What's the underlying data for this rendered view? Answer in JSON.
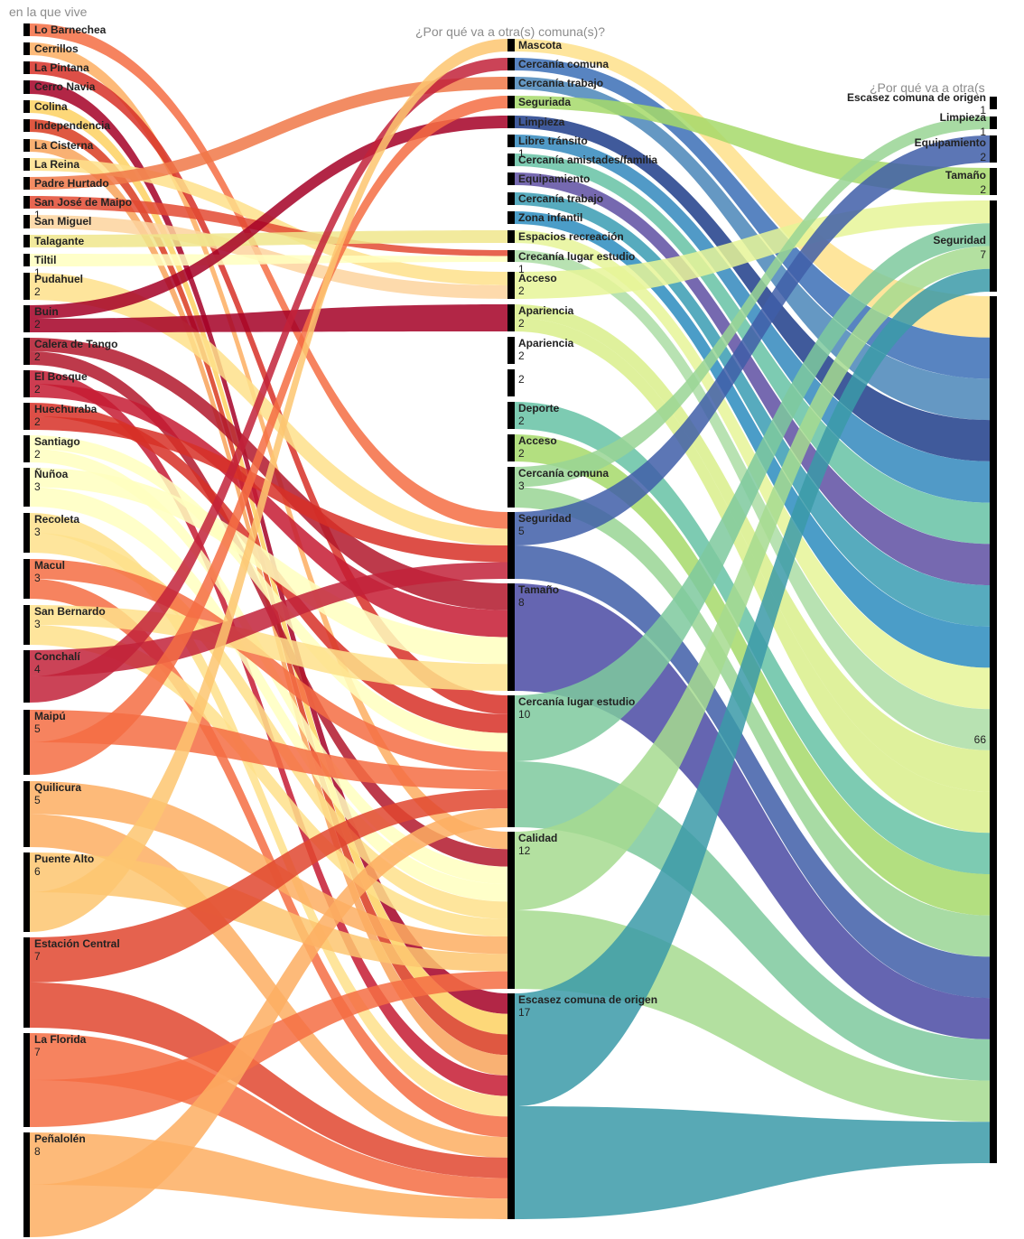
{
  "columns": {
    "left_title": "en la que vive",
    "middle_title": "¿Por qué va a otra(s) comuna(s)?",
    "right_title": "¿Por qué va a otra(s"
  },
  "left_nodes": [
    {
      "name": "Lo Barnechea",
      "count": "",
      "color": "#f46d43"
    },
    {
      "name": "Cerrillos",
      "count": "",
      "color": "#fdae61"
    },
    {
      "name": "La Pintana",
      "count": "",
      "color": "#d73027"
    },
    {
      "name": "Cerro Navia",
      "count": "",
      "color": "#a50026"
    },
    {
      "name": "Colina",
      "count": "",
      "color": "#fdd162"
    },
    {
      "name": "Independencia",
      "count": "",
      "color": "#d93b20"
    },
    {
      "name": "La Cisterna",
      "count": "",
      "color": "#f8a35a"
    },
    {
      "name": "La Reina",
      "count": "",
      "color": "#fee08b"
    },
    {
      "name": "Padre Hurtado",
      "count": "",
      "color": "#f07848"
    },
    {
      "name": "San José de Maipo",
      "count": "1",
      "color": "#e34a33"
    },
    {
      "name": "San Miguel",
      "count": "",
      "color": "#fdd49e"
    },
    {
      "name": "Talagante",
      "count": "",
      "color": "#f0e68c"
    },
    {
      "name": "Tiltil",
      "count": "1",
      "color": "#ffffbf"
    },
    {
      "name": "Pudahuel",
      "count": "2",
      "color": "#fee08b"
    },
    {
      "name": "Buin",
      "count": "2",
      "color": "#a50026"
    },
    {
      "name": "Calera de Tango",
      "count": "2",
      "color": "#b2182b"
    },
    {
      "name": "El Bosque",
      "count": "2",
      "color": "#c51b33"
    },
    {
      "name": "Huechuraba",
      "count": "2",
      "color": "#d73027"
    },
    {
      "name": "Santiago",
      "count": "2",
      "color": "#ffffbf"
    },
    {
      "name": "Ñuñoa",
      "count": "3",
      "color": "#ffffbf"
    },
    {
      "name": "Recoleta",
      "count": "3",
      "color": "#fee08b"
    },
    {
      "name": "Macul",
      "count": "3",
      "color": "#f46d43"
    },
    {
      "name": "San Bernardo",
      "count": "3",
      "color": "#fee08b"
    },
    {
      "name": "Conchalí",
      "count": "4",
      "color": "#c2223a"
    },
    {
      "name": "Maipú",
      "count": "5",
      "color": "#f46d43"
    },
    {
      "name": "Quilicura",
      "count": "5",
      "color": "#fdae61"
    },
    {
      "name": "Puente Alto",
      "count": "6",
      "color": "#fdc670"
    },
    {
      "name": "Estación Central",
      "count": "7",
      "color": "#e0462f"
    },
    {
      "name": "La Florida",
      "count": "7",
      "color": "#f46d43"
    },
    {
      "name": "Peñalolén",
      "count": "8",
      "color": "#fdae61"
    }
  ],
  "middle_nodes": [
    {
      "name": "Mascota",
      "count": "",
      "color": "#fee08b"
    },
    {
      "name": "Cercanía comuna",
      "count": "",
      "color": "#3b6fb6"
    },
    {
      "name": "Cercanía trabajo",
      "count": "",
      "color": "#4a86b8"
    },
    {
      "name": "Seguriada",
      "count": "",
      "color": "#a6d96a"
    },
    {
      "name": "Limpieza",
      "count": "",
      "color": "#1f3d8a"
    },
    {
      "name": "Libre tránsito",
      "count": "1",
      "color": "#3288bd"
    },
    {
      "name": "Cercanía amistades/familia",
      "count": "",
      "color": "#66c2a5"
    },
    {
      "name": "Equipamiento",
      "count": "",
      "color": "#5e4fa2"
    },
    {
      "name": "Cercanía trabajo",
      "count": "",
      "color": "#3a9cb3"
    },
    {
      "name": "Zona infantil",
      "count": "",
      "color": "#2b8cbe"
    },
    {
      "name": "Espacios recreación",
      "count": "",
      "color": "#e6f598"
    },
    {
      "name": "Crecanía lugar estudio",
      "count": "1",
      "color": "#abdda4"
    },
    {
      "name": "Acceso",
      "count": "2",
      "color": "#e6f598"
    },
    {
      "name": "Apariencia",
      "count": "2",
      "color": "#d9ef8b"
    },
    {
      "name": "Apariencia",
      "count": "2",
      "color": "#e6f598"
    },
    {
      "name": "",
      "count": "2",
      "color": "#ffffbf"
    },
    {
      "name": "Deporte",
      "count": "2",
      "color": "#66c2a5"
    },
    {
      "name": "Acceso",
      "count": "2",
      "color": "#a6d96a"
    },
    {
      "name": "Cercanía comuna",
      "count": "3",
      "color": "#99d594"
    },
    {
      "name": "Seguridad",
      "count": "5",
      "color": "#3f5ea8"
    },
    {
      "name": "Tamaño",
      "count": "8",
      "color": "#4a4aa3"
    },
    {
      "name": "Cercanía lugar estudio",
      "count": "10",
      "color": "#7ec99e"
    },
    {
      "name": "Calidad",
      "count": "12",
      "color": "#a6db8f"
    },
    {
      "name": "Escasez comuna de origen",
      "count": "17",
      "color": "#3b9aa8"
    }
  ],
  "right_nodes": [
    {
      "name": "Escasez comuna de origen",
      "count": "1",
      "color": "#3b9aa8"
    },
    {
      "name": "Limpieza",
      "count": "1",
      "color": "#4a4aa3"
    },
    {
      "name": "Equipamiento",
      "count": "2",
      "color": "#6b55a8"
    },
    {
      "name": "Tamaño",
      "count": "2",
      "color": "#3f5ea8"
    },
    {
      "name": "Seguridad",
      "count": "7",
      "color": "#3b9aa8"
    },
    {
      "name": "",
      "count": "66",
      "color": "#3b9aa8"
    }
  ],
  "left_links": [
    {
      "from": "Lo Barnechea",
      "to": "Seguridad"
    },
    {
      "from": "Cerrillos",
      "to": "Calidad"
    },
    {
      "from": "La Pintana",
      "to": "Cercanía lugar estudio"
    },
    {
      "from": "Cerro Navia",
      "to": "Escasez comuna de origen"
    },
    {
      "from": "Colina",
      "to": "Escasez comuna de origen"
    },
    {
      "from": "Independencia",
      "to": "Escasez comuna de origen"
    },
    {
      "from": "La Cisterna",
      "to": "Escasez comuna de origen"
    },
    {
      "from": "La Reina",
      "to": "Acceso"
    },
    {
      "from": "Padre Hurtado",
      "to": "Cercanía trabajo"
    },
    {
      "from": "San José de Maipo",
      "to": "Crecanía lugar estudio"
    },
    {
      "from": "San Miguel",
      "to": "Acceso"
    },
    {
      "from": "Talagante",
      "to": "Espacios recreación"
    },
    {
      "from": "Tiltil",
      "to": "Crecanía lugar estudio"
    },
    {
      "from": "Pudahuel",
      "to": "Seguridad"
    },
    {
      "from": "Buin",
      "to": "Limpieza"
    },
    {
      "from": "Buin",
      "to": "Apariencia"
    },
    {
      "from": "Calera de Tango",
      "to": "Tamaño"
    },
    {
      "from": "Calera de Tango",
      "to": "Calidad"
    },
    {
      "from": "El Bosque",
      "to": "Escasez comuna de origen"
    },
    {
      "from": "El Bosque",
      "to": "Tamaño"
    },
    {
      "from": "Huechuraba",
      "to": "Cercanía lugar estudio"
    },
    {
      "from": "Huechuraba",
      "to": "Seguridad"
    },
    {
      "from": "Santiago",
      "to": "Cercanía lugar estudio"
    },
    {
      "from": "Santiago",
      "to": "Calidad"
    },
    {
      "from": "Ñuñoa",
      "to": "Tamaño"
    },
    {
      "from": "Ñuñoa",
      "to": "Calidad"
    },
    {
      "from": "Recoleta",
      "to": "Escasez comuna de origen"
    },
    {
      "from": "Recoleta",
      "to": "Calidad"
    },
    {
      "from": "Macul",
      "to": "Cercanía lugar estudio"
    },
    {
      "from": "Macul",
      "to": "Escasez comuna de origen"
    },
    {
      "from": "San Bernardo",
      "to": "Tamaño"
    },
    {
      "from": "San Bernardo",
      "to": "Calidad"
    },
    {
      "from": "Conchalí",
      "to": "Seguridad"
    },
    {
      "from": "Conchalí",
      "to": "Cercanía comuna"
    },
    {
      "from": "Maipú",
      "to": "Cercanía lugar estudio"
    },
    {
      "from": "Maipú",
      "to": "Seguriada"
    },
    {
      "from": "Quilicura",
      "to": "Calidad"
    },
    {
      "from": "Quilicura",
      "to": "Escasez comuna de origen"
    },
    {
      "from": "Puente Alto",
      "to": "Calidad"
    },
    {
      "from": "Puente Alto",
      "to": "Mascota"
    },
    {
      "from": "Estación Central",
      "to": "Cercanía lugar estudio"
    },
    {
      "from": "Estación Central",
      "to": "Escasez comuna de origen"
    },
    {
      "from": "La Florida",
      "to": "Escasez comuna de origen"
    },
    {
      "from": "La Florida",
      "to": "Calidad"
    },
    {
      "from": "Peñalolén",
      "to": "Escasez comuna de origen"
    },
    {
      "from": "Peñalolén",
      "to": "Cercanía lugar estudio"
    }
  ],
  "right_links": [
    {
      "from": "Mascota",
      "to": "66"
    },
    {
      "from": "Cercanía comuna",
      "to": "66"
    },
    {
      "from": "Cercanía trabajo",
      "to": "66"
    },
    {
      "from": "Seguriada",
      "to": "Tamaño"
    },
    {
      "from": "Limpieza",
      "to": "66"
    },
    {
      "from": "Libre tránsito",
      "to": "66"
    },
    {
      "from": "Cercanía amistades/familia",
      "to": "66"
    },
    {
      "from": "Equipamiento",
      "to": "66"
    },
    {
      "from": "Cercanía trabajo",
      "to": "66"
    },
    {
      "from": "Zona infantil",
      "to": "66"
    },
    {
      "from": "Espacios recreación",
      "to": "66"
    },
    {
      "from": "Crecanía lugar estudio",
      "to": "66"
    },
    {
      "from": "Acceso",
      "to": "Seguridad"
    },
    {
      "from": "Apariencia",
      "to": "66"
    },
    {
      "from": "Apariencia",
      "to": "66"
    },
    {
      "from": "Deporte",
      "to": "66"
    },
    {
      "from": "Acceso",
      "to": "66"
    },
    {
      "from": "Cercanía comuna",
      "to": "Limpieza"
    },
    {
      "from": "Cercanía comuna",
      "to": "66"
    },
    {
      "from": "Seguridad",
      "to": "Equipamiento"
    },
    {
      "from": "Seguridad",
      "to": "66"
    },
    {
      "from": "Tamaño",
      "to": "66"
    },
    {
      "from": "Cercanía lugar estudio",
      "to": "Seguridad"
    },
    {
      "from": "Cercanía lugar estudio",
      "to": "66"
    },
    {
      "from": "Calidad",
      "to": "Seguridad"
    },
    {
      "from": "Calidad",
      "to": "66"
    },
    {
      "from": "Escasez comuna de origen",
      "to": "Seguridad"
    },
    {
      "from": "Escasez comuna de origen",
      "to": "66"
    }
  ]
}
